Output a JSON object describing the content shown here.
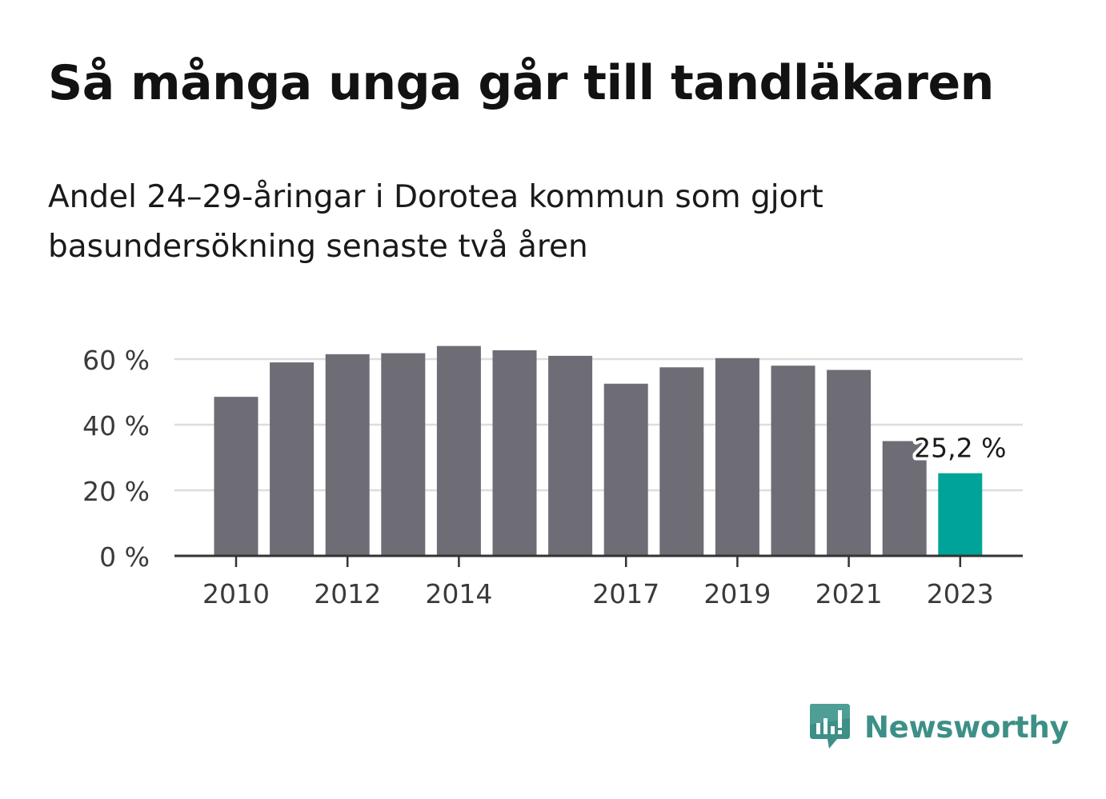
{
  "title": "Så många unga går till tandläkaren",
  "subtitle": "Andel 24–29-åringar i Dorotea kommun som gjort basundersökning senaste två åren",
  "chart_data": {
    "type": "bar",
    "categories": [
      "2010",
      "2011",
      "2012",
      "2013",
      "2014",
      "2015",
      "2016",
      "2017",
      "2018",
      "2019",
      "2020",
      "2021",
      "2022",
      "2023"
    ],
    "values": [
      48.5,
      59,
      61.5,
      61.8,
      64,
      62.7,
      61,
      52.5,
      57.5,
      60.3,
      58,
      56.7,
      35,
      25.2
    ],
    "xticks": [
      "2010",
      "2012",
      "2014",
      "2017",
      "2019",
      "2021",
      "2023"
    ],
    "yticks": [
      0,
      20,
      40,
      60
    ],
    "ytick_labels": [
      "0 %",
      "20 %",
      "40 %",
      "60 %"
    ],
    "ylim": [
      0,
      70
    ],
    "grid": true,
    "highlight_index": 13,
    "highlight_label": "25,2 %",
    "colors": {
      "bar": "#6e6d75",
      "highlight": "#00a398",
      "grid": "#dddddd",
      "axis": "#333333"
    }
  },
  "logo": {
    "text": "Newsworthy",
    "icon": "newsworthy-bar-chart-bubble-icon",
    "color": "#3d8f87"
  }
}
